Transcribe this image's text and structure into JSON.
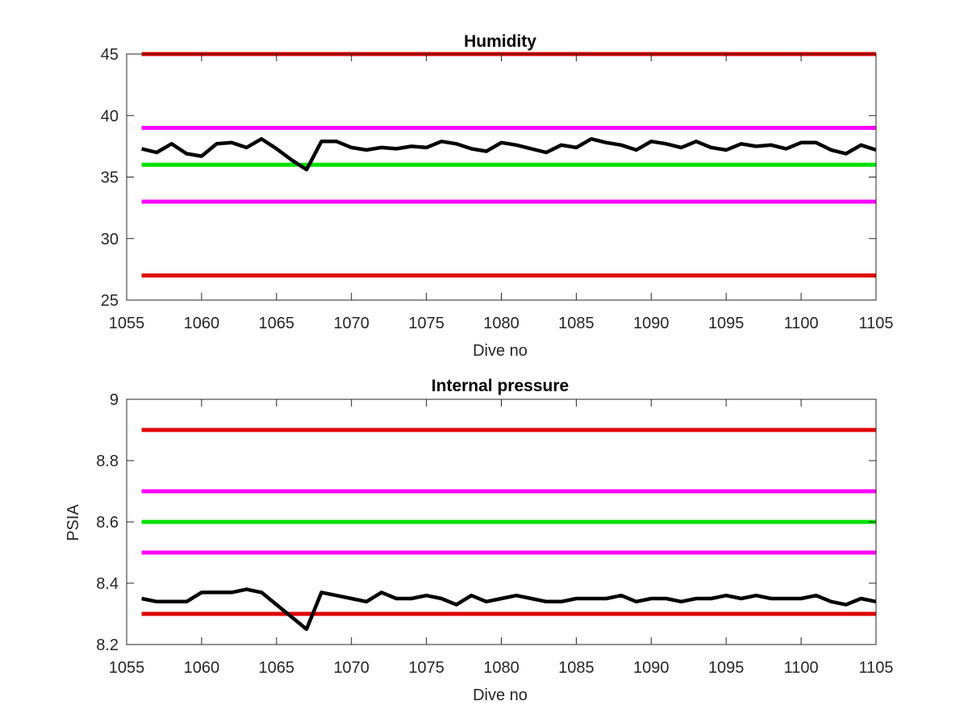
{
  "chart_data": [
    {
      "type": "line",
      "title": "Humidity",
      "xlabel": "Dive no",
      "ylabel": "",
      "xlim": [
        1055,
        1105
      ],
      "ylim": [
        25,
        45
      ],
      "xticks": [
        "1055",
        "1060",
        "1065",
        "1070",
        "1075",
        "1080",
        "1085",
        "1090",
        "1095",
        "1100",
        "1105"
      ],
      "yticks": [
        "25",
        "30",
        "35",
        "40",
        "45"
      ],
      "grid": false,
      "reference_lines": [
        {
          "y": 45,
          "color": "#e00000"
        },
        {
          "y": 39,
          "color": "#ff00ff"
        },
        {
          "y": 36,
          "color": "#00e000"
        },
        {
          "y": 33,
          "color": "#ff00ff"
        },
        {
          "y": 27,
          "color": "#e00000"
        }
      ],
      "series": [
        {
          "color": "#000000",
          "x": [
            1056,
            1057,
            1058,
            1059,
            1060,
            1061,
            1062,
            1063,
            1064,
            1065,
            1066,
            1067,
            1068,
            1069,
            1070,
            1071,
            1072,
            1073,
            1074,
            1075,
            1076,
            1077,
            1078,
            1079,
            1080,
            1081,
            1082,
            1083,
            1084,
            1085,
            1086,
            1087,
            1088,
            1089,
            1090,
            1091,
            1092,
            1093,
            1094,
            1095,
            1096,
            1097,
            1098,
            1099,
            1100,
            1101,
            1102,
            1103,
            1104,
            1105
          ],
          "values": [
            37.3,
            37.0,
            37.7,
            36.9,
            36.7,
            37.7,
            37.8,
            37.4,
            38.1,
            37.3,
            36.4,
            35.6,
            37.9,
            37.9,
            37.4,
            37.2,
            37.4,
            37.3,
            37.5,
            37.4,
            37.9,
            37.7,
            37.3,
            37.1,
            37.8,
            37.6,
            37.3,
            37.0,
            37.6,
            37.4,
            38.1,
            37.8,
            37.6,
            37.2,
            37.9,
            37.7,
            37.4,
            37.9,
            37.4,
            37.2,
            37.7,
            37.5,
            37.6,
            37.3,
            37.8,
            37.8,
            37.2,
            36.9,
            37.6,
            37.2
          ]
        }
      ]
    },
    {
      "type": "line",
      "title": "Internal pressure",
      "xlabel": "Dive no",
      "ylabel": "PSIA",
      "xlim": [
        1055,
        1105
      ],
      "ylim": [
        8.2,
        9.0
      ],
      "xticks": [
        "1055",
        "1060",
        "1065",
        "1070",
        "1075",
        "1080",
        "1085",
        "1090",
        "1095",
        "1100",
        "1105"
      ],
      "yticks": [
        "8.2",
        "8.4",
        "8.6",
        "8.8",
        "9"
      ],
      "grid": false,
      "reference_lines": [
        {
          "y": 8.9,
          "color": "#e00000"
        },
        {
          "y": 8.7,
          "color": "#ff00ff"
        },
        {
          "y": 8.6,
          "color": "#00e000"
        },
        {
          "y": 8.5,
          "color": "#ff00ff"
        },
        {
          "y": 8.3,
          "color": "#e00000"
        }
      ],
      "series": [
        {
          "color": "#000000",
          "x": [
            1056,
            1057,
            1058,
            1059,
            1060,
            1061,
            1062,
            1063,
            1064,
            1065,
            1066,
            1067,
            1068,
            1069,
            1070,
            1071,
            1072,
            1073,
            1074,
            1075,
            1076,
            1077,
            1078,
            1079,
            1080,
            1081,
            1082,
            1083,
            1084,
            1085,
            1086,
            1087,
            1088,
            1089,
            1090,
            1091,
            1092,
            1093,
            1094,
            1095,
            1096,
            1097,
            1098,
            1099,
            1100,
            1101,
            1102,
            1103,
            1104,
            1105
          ],
          "values": [
            8.35,
            8.34,
            8.34,
            8.34,
            8.37,
            8.37,
            8.37,
            8.38,
            8.37,
            8.33,
            8.29,
            8.25,
            8.37,
            8.36,
            8.35,
            8.34,
            8.37,
            8.35,
            8.35,
            8.36,
            8.35,
            8.33,
            8.36,
            8.34,
            8.35,
            8.36,
            8.35,
            8.34,
            8.34,
            8.35,
            8.35,
            8.35,
            8.36,
            8.34,
            8.35,
            8.35,
            8.34,
            8.35,
            8.35,
            8.36,
            8.35,
            8.36,
            8.35,
            8.35,
            8.35,
            8.36,
            8.34,
            8.33,
            8.35,
            8.34
          ]
        }
      ]
    }
  ]
}
